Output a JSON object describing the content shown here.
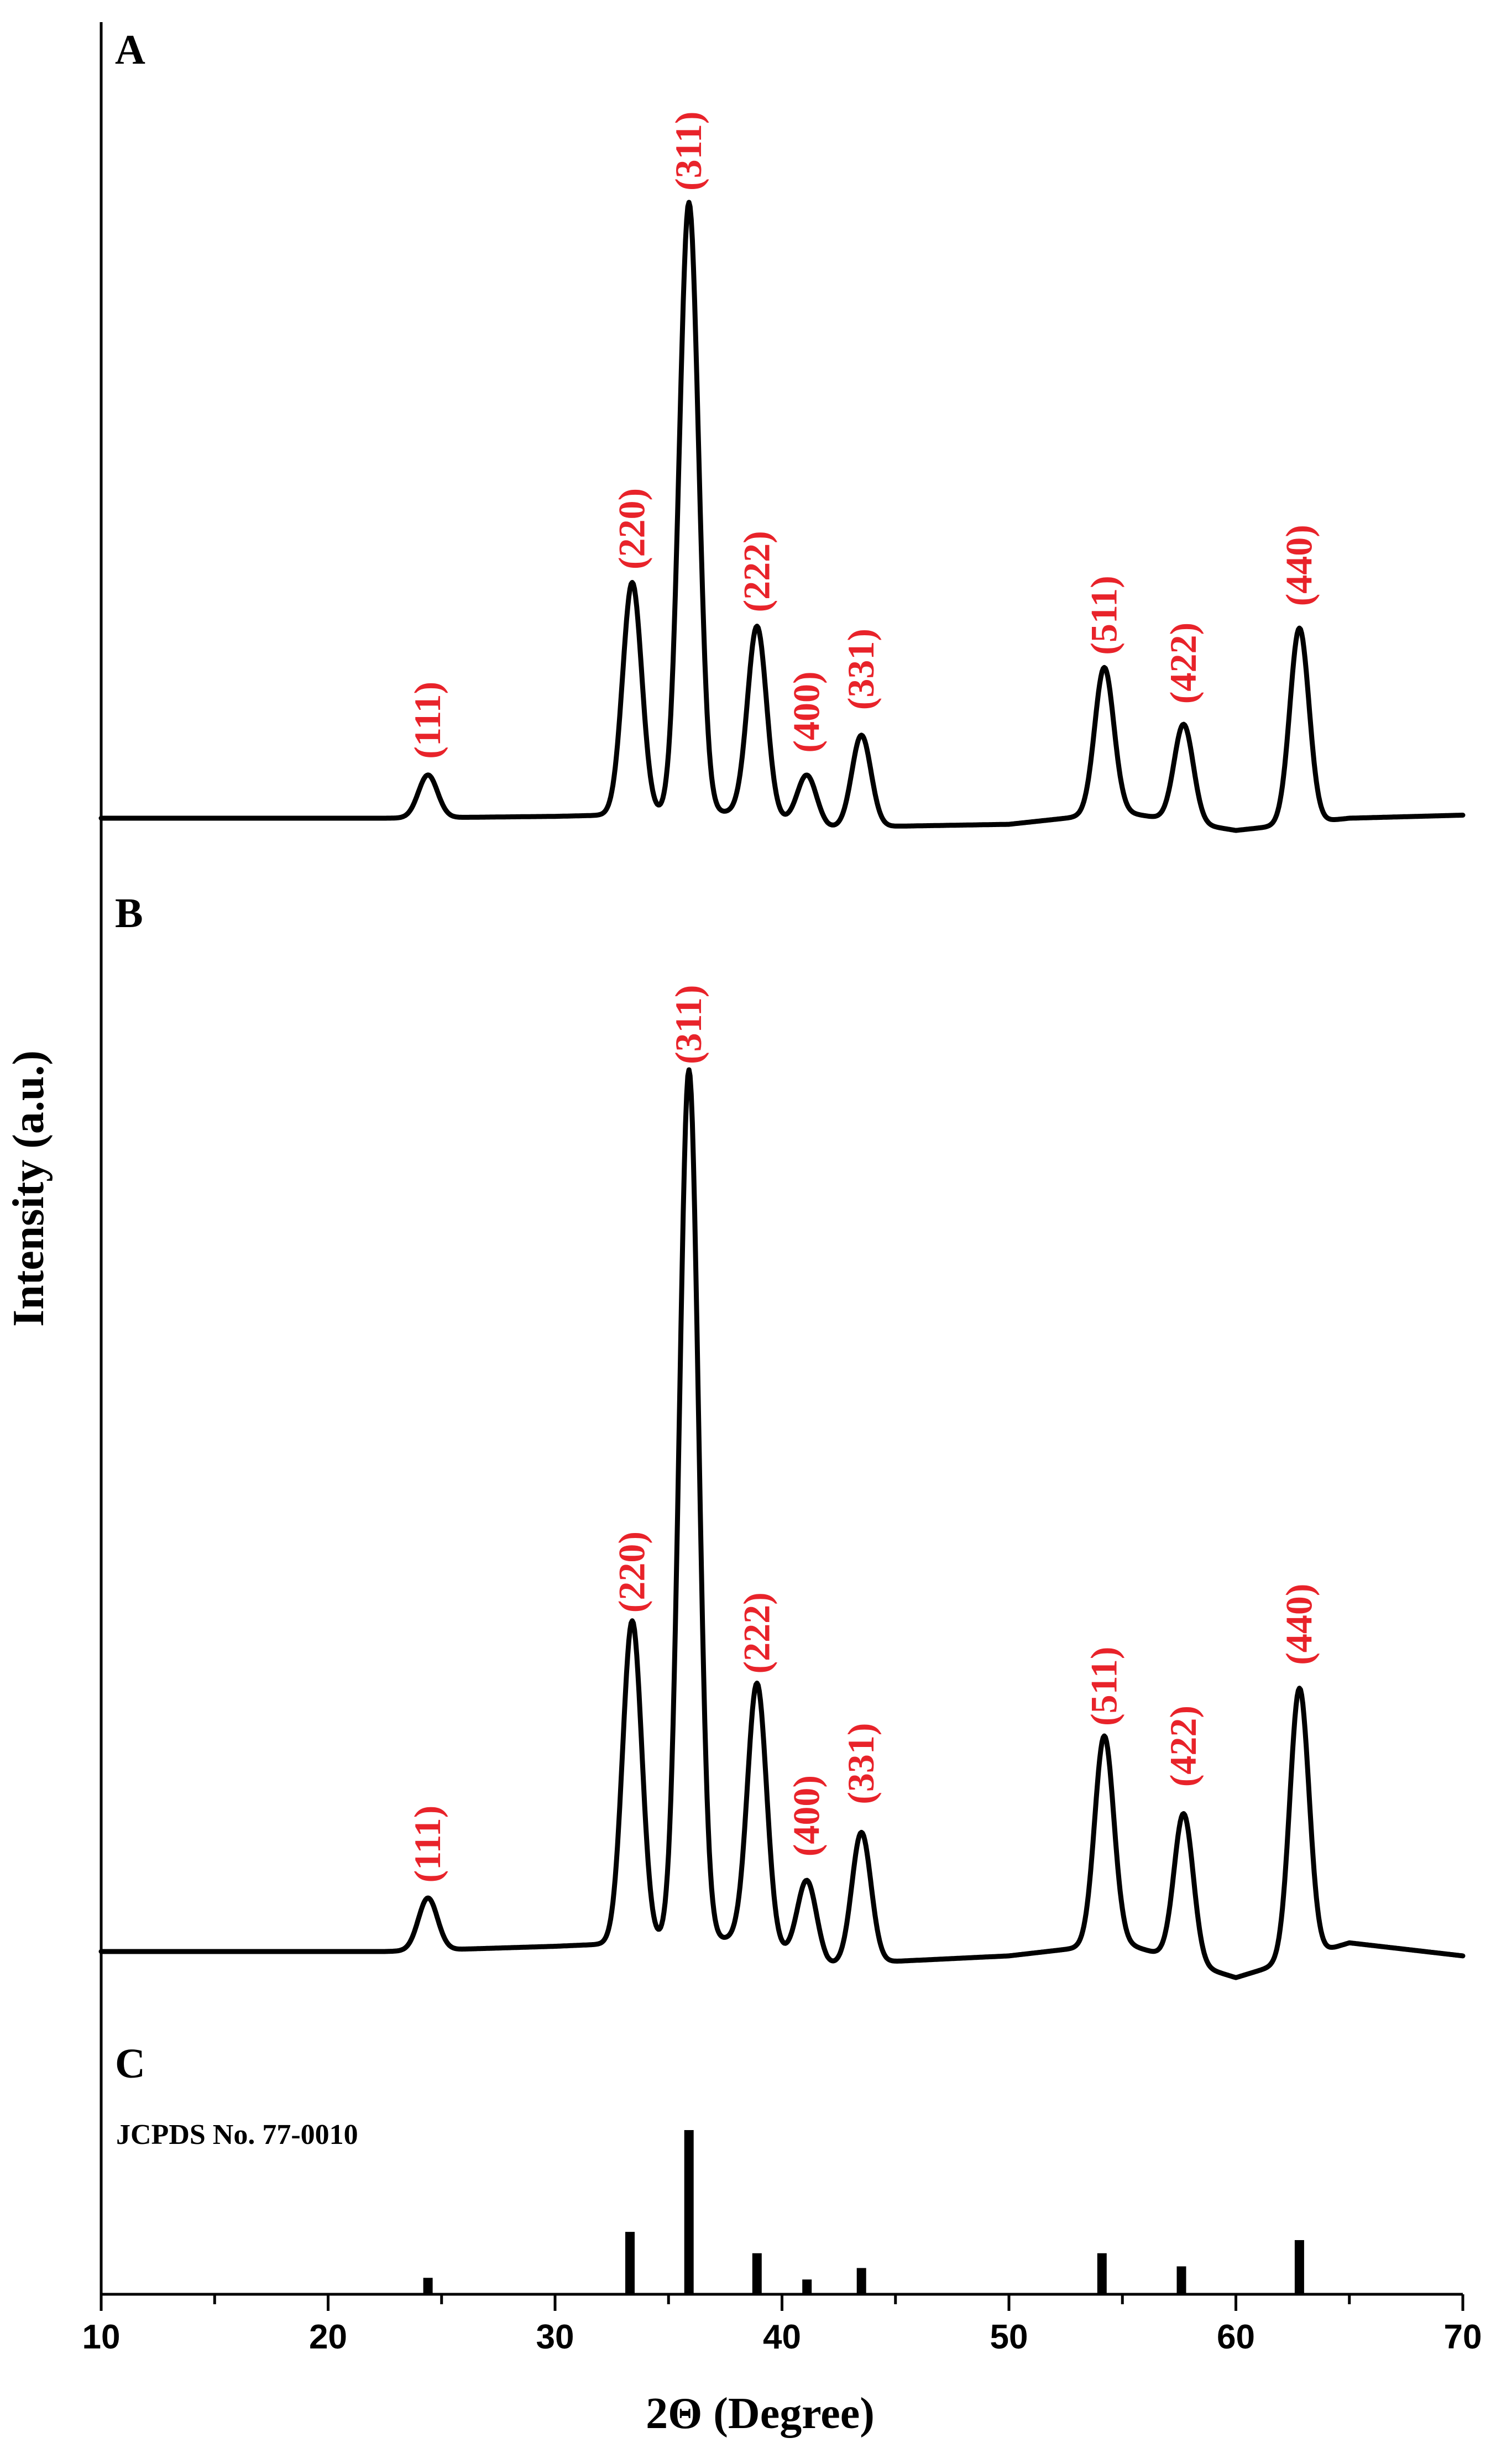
{
  "chart_data": {
    "type": "line",
    "title": "",
    "xlabel": "2Θ (Degree)",
    "ylabel": "Intensity (a.u.)",
    "xlim": [
      10,
      70
    ],
    "x_ticks": [
      10,
      20,
      30,
      40,
      50,
      60,
      70
    ],
    "ylim": [
      0,
      100
    ],
    "grid": false,
    "legend": "none",
    "panels": [
      {
        "label": "A",
        "baseline": [
          [
            10,
            0
          ],
          [
            22.5,
            0
          ],
          [
            30,
            0.3
          ],
          [
            38,
            1
          ],
          [
            42,
            -1.5
          ],
          [
            50,
            -1
          ],
          [
            55,
            1
          ],
          [
            60,
            -2
          ],
          [
            65,
            0
          ],
          [
            70,
            0.5
          ]
        ],
        "peaks": [
          {
            "hkl": "(111)",
            "two_theta": 24.4,
            "intensity": 7
          },
          {
            "hkl": "(220)",
            "two_theta": 33.4,
            "intensity": 38
          },
          {
            "hkl": "(311)",
            "two_theta": 35.9,
            "intensity": 100
          },
          {
            "hkl": "(222)",
            "two_theta": 38.9,
            "intensity": 31
          },
          {
            "hkl": "(400)",
            "two_theta": 41.1,
            "intensity": 8
          },
          {
            "hkl": "(331)",
            "two_theta": 43.5,
            "intensity": 15
          },
          {
            "hkl": "(511)",
            "two_theta": 54.2,
            "intensity": 24
          },
          {
            "hkl": "(422)",
            "two_theta": 57.7,
            "intensity": 16
          },
          {
            "hkl": "(440)",
            "two_theta": 62.8,
            "intensity": 32
          }
        ]
      },
      {
        "label": "B",
        "baseline": [
          [
            10,
            0
          ],
          [
            22.5,
            0
          ],
          [
            30,
            0.6
          ],
          [
            38,
            1.5
          ],
          [
            42,
            -1.5
          ],
          [
            50,
            -0.5
          ],
          [
            55,
            1
          ],
          [
            60,
            -3
          ],
          [
            65,
            1
          ],
          [
            70,
            -0.5
          ]
        ],
        "peaks": [
          {
            "hkl": "(111)",
            "two_theta": 24.4,
            "intensity": 6
          },
          {
            "hkl": "(220)",
            "two_theta": 33.4,
            "intensity": 37
          },
          {
            "hkl": "(311)",
            "two_theta": 35.9,
            "intensity": 100
          },
          {
            "hkl": "(222)",
            "two_theta": 38.9,
            "intensity": 30
          },
          {
            "hkl": "(400)",
            "two_theta": 41.1,
            "intensity": 9
          },
          {
            "hkl": "(331)",
            "two_theta": 43.5,
            "intensity": 15
          },
          {
            "hkl": "(511)",
            "two_theta": 54.2,
            "intensity": 24
          },
          {
            "hkl": "(422)",
            "two_theta": 57.7,
            "intensity": 17
          },
          {
            "hkl": "(440)",
            "two_theta": 62.8,
            "intensity": 31
          }
        ]
      }
    ],
    "reference": {
      "label": "C",
      "name": "JCPDS No. 77-0010",
      "lines": [
        {
          "two_theta": 24.4,
          "intensity": 10
        },
        {
          "two_theta": 33.3,
          "intensity": 38
        },
        {
          "two_theta": 35.9,
          "intensity": 100
        },
        {
          "two_theta": 38.9,
          "intensity": 25
        },
        {
          "two_theta": 41.1,
          "intensity": 9
        },
        {
          "two_theta": 43.5,
          "intensity": 16
        },
        {
          "two_theta": 54.1,
          "intensity": 25
        },
        {
          "two_theta": 57.6,
          "intensity": 17
        },
        {
          "two_theta": 62.8,
          "intensity": 33
        }
      ]
    }
  }
}
